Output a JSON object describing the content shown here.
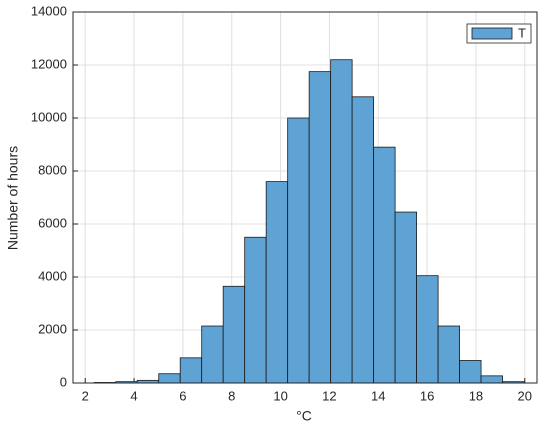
{
  "chart_data": {
    "type": "histogram",
    "xlabel": "°C",
    "ylabel": "Number of hours",
    "bins": [
      2.37,
      3.25,
      4.13,
      5.01,
      5.89,
      6.77,
      7.65,
      8.53,
      9.41,
      10.29,
      11.17,
      12.05,
      12.93,
      13.81,
      14.69,
      15.57,
      16.45,
      17.33,
      18.21,
      19.09,
      19.97
    ],
    "series": [
      {
        "name": "T",
        "color": "#5fa3d5",
        "values": [
          20,
          50,
          100,
          350,
          950,
          2150,
          3650,
          5500,
          7600,
          10000,
          11750,
          12200,
          10800,
          8900,
          6450,
          4050,
          2150,
          850,
          270,
          50
        ]
      }
    ],
    "xlim": [
      1.5,
      20.5
    ],
    "xticks": [
      2,
      4,
      6,
      8,
      10,
      12,
      14,
      16,
      18,
      20
    ],
    "ylim": [
      0,
      14000
    ],
    "yticks": [
      0,
      2000,
      4000,
      6000,
      8000,
      10000,
      12000,
      14000
    ],
    "grid": true,
    "legend": "upper right"
  }
}
